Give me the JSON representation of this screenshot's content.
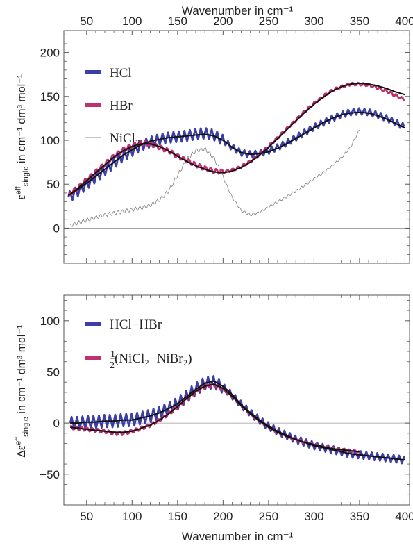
{
  "chart_data": [
    {
      "type": "line",
      "panel": "top",
      "top_xlabel": "Wavenumber in cm⁻¹",
      "x_ticks": [
        50,
        100,
        150,
        200,
        250,
        300,
        350,
        400
      ],
      "xlim": [
        25,
        405
      ],
      "ylim": [
        -40,
        225
      ],
      "y_ticks": [
        0,
        50,
        100,
        150,
        200
      ],
      "ylabel_parts": {
        "sym": "ε",
        "sup": "eff",
        "sub": "single",
        "rest": " in cm⁻¹ dm³ mol⁻¹"
      },
      "legend_placement": "top-left",
      "grid": false,
      "zero_line": true,
      "series": [
        {
          "name": "HCl",
          "name_sub": "",
          "color": "#3b3fa6",
          "kind": "noisy-thick",
          "x": [
            30,
            40,
            50,
            60,
            70,
            80,
            90,
            100,
            110,
            120,
            130,
            140,
            150,
            160,
            170,
            180,
            190,
            200,
            210,
            220,
            230,
            240,
            250,
            260,
            270,
            280,
            290,
            300,
            310,
            320,
            330,
            340,
            350,
            360,
            370,
            380,
            390,
            400
          ],
          "y": [
            35,
            42,
            50,
            58,
            66,
            74,
            82,
            88,
            94,
            98,
            101,
            103,
            104,
            105,
            107,
            108,
            106,
            100,
            92,
            86,
            84,
            85,
            88,
            92,
            97,
            103,
            109,
            115,
            120,
            125,
            129,
            132,
            133,
            132,
            129,
            125,
            120,
            115
          ],
          "fit": [
            37,
            44,
            51,
            59,
            67,
            75,
            83,
            89,
            95,
            99,
            101,
            103,
            104,
            105,
            106,
            107,
            105,
            100,
            92,
            86,
            84,
            85,
            87,
            91,
            96,
            102,
            108,
            114,
            120,
            125,
            129,
            131,
            132,
            131,
            128,
            124,
            119,
            114
          ],
          "amp": 6
        },
        {
          "name": "HBr",
          "name_sub": "",
          "color": "#c0306e",
          "kind": "noisy-thick",
          "x": [
            30,
            40,
            50,
            60,
            70,
            80,
            90,
            100,
            110,
            120,
            130,
            140,
            150,
            160,
            170,
            180,
            190,
            200,
            210,
            220,
            230,
            240,
            250,
            260,
            270,
            280,
            290,
            300,
            310,
            320,
            330,
            340,
            350,
            360,
            370,
            380,
            390,
            400
          ],
          "y": [
            38,
            45,
            55,
            64,
            73,
            82,
            89,
            94,
            97,
            96,
            92,
            88,
            82,
            77,
            72,
            68,
            65,
            64,
            66,
            70,
            76,
            84,
            93,
            103,
            113,
            123,
            133,
            142,
            150,
            157,
            161,
            164,
            164,
            163,
            160,
            156,
            151,
            146
          ],
          "fit": [
            37,
            45,
            54,
            63,
            72,
            81,
            88,
            93,
            96,
            96,
            93,
            88,
            82,
            76,
            71,
            67,
            64,
            63,
            65,
            69,
            75,
            83,
            92,
            102,
            112,
            122,
            132,
            141,
            149,
            156,
            161,
            164,
            165,
            164,
            162,
            159,
            155,
            152
          ],
          "amp": 3
        },
        {
          "name": "NiCl",
          "name_sub": "2",
          "color": "#8a8a8a",
          "kind": "thin",
          "x": [
            32,
            40,
            50,
            60,
            70,
            80,
            90,
            100,
            110,
            120,
            130,
            140,
            150,
            160,
            170,
            180,
            190,
            200,
            210,
            220,
            230,
            240,
            250,
            260,
            270,
            280,
            290,
            300,
            310,
            320,
            330,
            340,
            350
          ],
          "y": [
            3,
            6,
            9,
            12,
            15,
            17,
            19,
            21,
            23,
            26,
            32,
            42,
            60,
            78,
            88,
            90,
            80,
            58,
            35,
            20,
            15,
            18,
            24,
            30,
            36,
            42,
            49,
            56,
            63,
            71,
            80,
            92,
            112
          ],
          "amp": 4
        }
      ]
    },
    {
      "type": "line",
      "panel": "bottom",
      "xlabel": "Wavenumber in cm⁻¹",
      "x_ticks": [
        50,
        100,
        150,
        200,
        250,
        300,
        350,
        400
      ],
      "xlim": [
        25,
        405
      ],
      "ylim": [
        -80,
        125
      ],
      "y_ticks": [
        -50,
        0,
        50,
        100
      ],
      "ylabel_parts": {
        "sym": "Δε",
        "sup": "eff",
        "sub": "single",
        "rest": " in cm⁻¹ dm³ mol⁻¹"
      },
      "legend_placement": "top-left",
      "grid": false,
      "zero_line": true,
      "series": [
        {
          "name": "HCl−HBr",
          "color": "#3b3fa6",
          "kind": "noisy-thick",
          "x": [
            32,
            40,
            50,
            60,
            70,
            80,
            90,
            100,
            110,
            120,
            130,
            140,
            150,
            160,
            170,
            180,
            190,
            200,
            210,
            220,
            230,
            240,
            250,
            260,
            270,
            280,
            290,
            300,
            310,
            320,
            330,
            340,
            350,
            360,
            370,
            380,
            390,
            400
          ],
          "y": [
            0,
            0,
            1,
            1,
            2,
            2,
            3,
            3,
            5,
            7,
            10,
            14,
            19,
            26,
            33,
            39,
            40,
            35,
            27,
            18,
            10,
            3,
            -3,
            -8,
            -12,
            -16,
            -19,
            -22,
            -24,
            -26,
            -28,
            -30,
            -31,
            -32,
            -33,
            -34,
            -35,
            -36
          ],
          "fit": [
            0,
            0,
            1,
            1,
            2,
            2,
            3,
            3,
            5,
            7,
            10,
            14,
            19,
            26,
            33,
            39,
            41,
            36,
            28,
            18,
            10,
            3,
            -3,
            -8,
            -12,
            -16,
            -19,
            -22,
            -24,
            -26,
            -28,
            -30,
            -31,
            -32,
            -33,
            -34,
            -35,
            -36
          ],
          "amp": 6
        },
        {
          "name": "(NiCl₂−NiBr₂)",
          "name_prefix": "1/2",
          "color": "#c0306e",
          "kind": "noisy-thick",
          "x": [
            32,
            40,
            50,
            60,
            70,
            80,
            90,
            100,
            110,
            120,
            130,
            140,
            150,
            160,
            170,
            180,
            190,
            200,
            210,
            220,
            230,
            240,
            250,
            260,
            270,
            280,
            290,
            300,
            310,
            320,
            330,
            340,
            350
          ],
          "y": [
            -4,
            -5,
            -6,
            -7,
            -8,
            -10,
            -10,
            -8,
            -5,
            -2,
            3,
            9,
            16,
            24,
            31,
            36,
            37,
            33,
            26,
            17,
            9,
            2,
            -4,
            -9,
            -13,
            -16,
            -19,
            -21,
            -23,
            -25,
            -26,
            -27,
            -28
          ],
          "fit": [
            -4,
            -5,
            -6,
            -7,
            -8,
            -9,
            -9,
            -8,
            -5,
            -2,
            3,
            9,
            16,
            24,
            31,
            36,
            38,
            34,
            26,
            17,
            9,
            2,
            -4,
            -9,
            -13,
            -16,
            -19,
            -21,
            -23,
            -25,
            -26,
            -27,
            -28
          ],
          "amp": 2
        }
      ]
    }
  ]
}
